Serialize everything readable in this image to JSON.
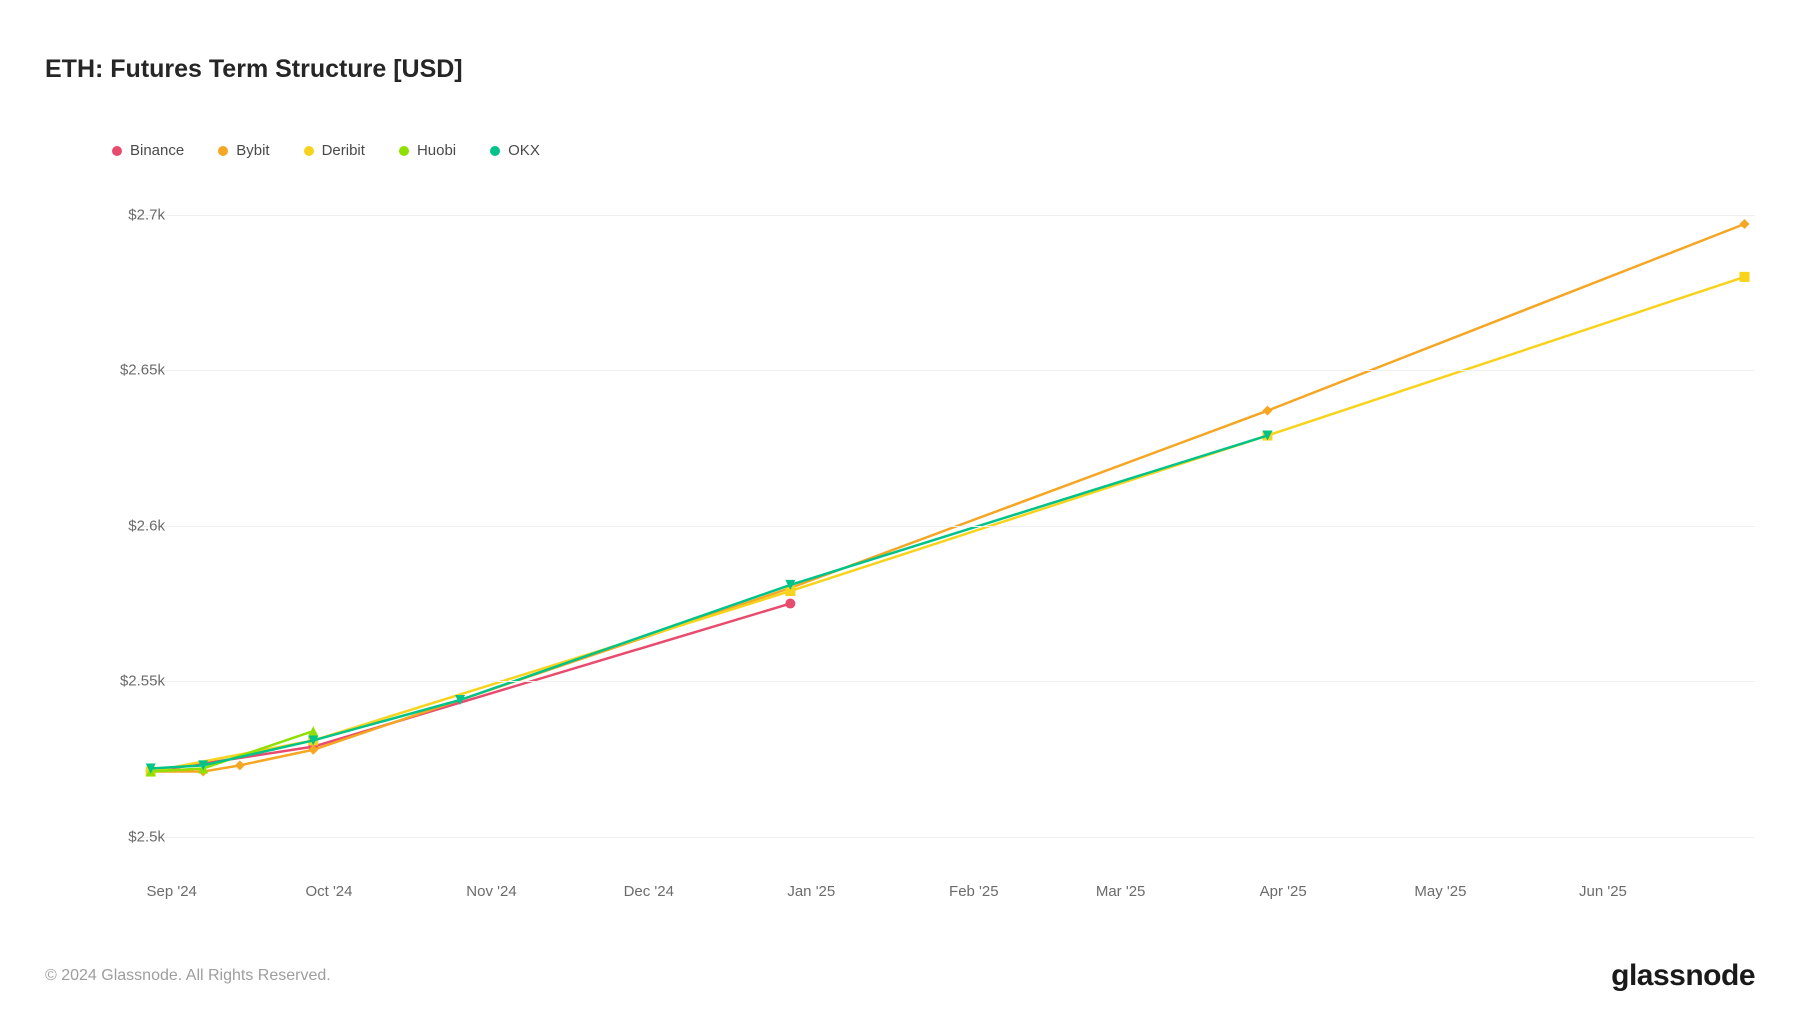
{
  "title": "ETH: Futures Term Structure [USD]",
  "copyright": "© 2024 Glassnode. All Rights Reserved.",
  "brand": "glassnode",
  "chart": {
    "type": "line",
    "background_color": "#ffffff",
    "grid_color": "#f0f0f0",
    "title_color": "#262626",
    "title_fontsize": 25,
    "label_color": "#6b6b6b",
    "label_fontsize": 15,
    "x_axis": {
      "min": "2024-08-25",
      "max": "2025-06-30",
      "ticks": [
        {
          "label": "Sep '24",
          "value": "2024-09-01"
        },
        {
          "label": "Oct '24",
          "value": "2024-10-01"
        },
        {
          "label": "Nov '24",
          "value": "2024-11-01"
        },
        {
          "label": "Dec '24",
          "value": "2024-12-01"
        },
        {
          "label": "Jan '25",
          "value": "2025-01-01"
        },
        {
          "label": "Feb '25",
          "value": "2025-02-01"
        },
        {
          "label": "Mar '25",
          "value": "2025-03-01"
        },
        {
          "label": "Apr '25",
          "value": "2025-04-01"
        },
        {
          "label": "May '25",
          "value": "2025-05-01"
        },
        {
          "label": "Jun '25",
          "value": "2025-06-01"
        }
      ]
    },
    "y_axis": {
      "min": 2490,
      "max": 2715,
      "ticks": [
        {
          "label": "$2.5k",
          "value": 2500
        },
        {
          "label": "$2.55k",
          "value": 2550
        },
        {
          "label": "$2.6k",
          "value": 2600
        },
        {
          "label": "$2.65k",
          "value": 2650
        },
        {
          "label": "$2.7k",
          "value": 2700
        }
      ]
    },
    "series": [
      {
        "name": "Binance",
        "color": "#e94b6e",
        "marker": "circle",
        "line_width": 2.5,
        "points": [
          {
            "x": "2024-08-28",
            "y": 2521
          },
          {
            "x": "2024-09-28",
            "y": 2529
          },
          {
            "x": "2024-12-28",
            "y": 2575
          }
        ]
      },
      {
        "name": "Bybit",
        "color": "#f5a623",
        "marker": "diamond",
        "line_width": 2.5,
        "points": [
          {
            "x": "2024-08-28",
            "y": 2521
          },
          {
            "x": "2024-09-07",
            "y": 2521
          },
          {
            "x": "2024-09-14",
            "y": 2523
          },
          {
            "x": "2024-09-28",
            "y": 2528
          },
          {
            "x": "2024-12-28",
            "y": 2580
          },
          {
            "x": "2025-03-29",
            "y": 2637
          },
          {
            "x": "2025-06-28",
            "y": 2697
          }
        ]
      },
      {
        "name": "Deribit",
        "color": "#f8d31c",
        "marker": "square",
        "line_width": 2.5,
        "points": [
          {
            "x": "2024-08-28",
            "y": 2521
          },
          {
            "x": "2024-09-28",
            "y": 2531
          },
          {
            "x": "2024-12-28",
            "y": 2579
          },
          {
            "x": "2025-03-29",
            "y": 2629
          },
          {
            "x": "2025-06-28",
            "y": 2680
          }
        ]
      },
      {
        "name": "Huobi",
        "color": "#8fe000",
        "marker": "triangle",
        "line_width": 2.5,
        "points": [
          {
            "x": "2024-08-28",
            "y": 2521
          },
          {
            "x": "2024-09-07",
            "y": 2522
          },
          {
            "x": "2024-09-28",
            "y": 2534
          }
        ]
      },
      {
        "name": "OKX",
        "color": "#00c389",
        "marker": "triangle-down",
        "line_width": 2.5,
        "points": [
          {
            "x": "2024-08-28",
            "y": 2522
          },
          {
            "x": "2024-09-07",
            "y": 2523
          },
          {
            "x": "2024-09-28",
            "y": 2531
          },
          {
            "x": "2024-10-26",
            "y": 2544
          },
          {
            "x": "2024-12-28",
            "y": 2581
          },
          {
            "x": "2025-03-29",
            "y": 2629
          }
        ]
      }
    ]
  }
}
